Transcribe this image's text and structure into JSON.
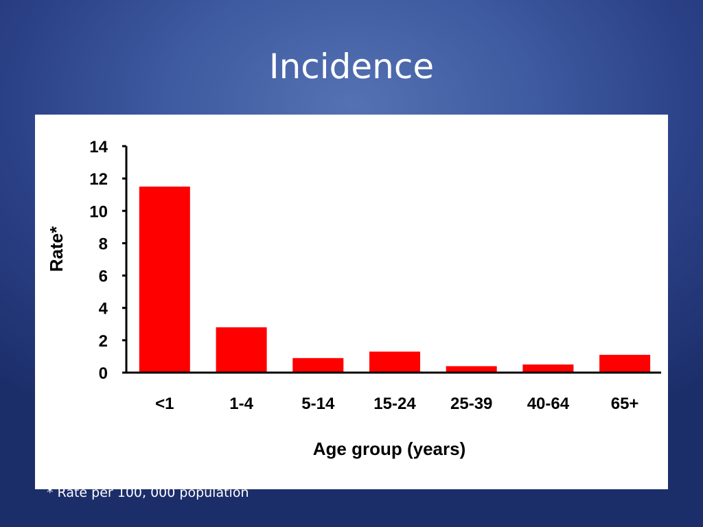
{
  "slide": {
    "title": "Incidence",
    "footnote": "* Rate per 100, 000 population"
  },
  "colors": {
    "bar": "#ff0000",
    "axis": "#000000"
  },
  "chart_data": {
    "type": "bar",
    "title": "",
    "xlabel": "Age group (years)",
    "ylabel": "Rate*",
    "categories": [
      "<1",
      "1-4",
      "5-14",
      "15-24",
      "25-39",
      "40-64",
      "65+"
    ],
    "values": [
      11.5,
      2.8,
      0.9,
      1.3,
      0.4,
      0.5,
      1.1
    ],
    "ylim": [
      0,
      14
    ],
    "yticks": [
      "0",
      "2",
      "4",
      "6",
      "8",
      "10",
      "12",
      "14"
    ],
    "grid": false,
    "legend": "none"
  }
}
